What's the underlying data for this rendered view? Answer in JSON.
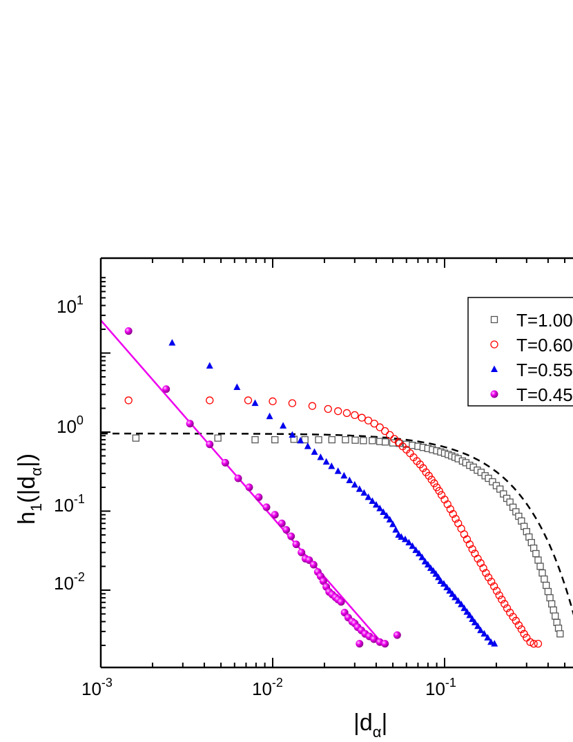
{
  "chart_data": {
    "type": "scatter",
    "x_scale": "log",
    "y_scale": "log",
    "xlim": [
      0.001,
      0.6
    ],
    "ylim": [
      0.002,
      30
    ],
    "x_ticks": [
      {
        "value": 0.001,
        "base": "10",
        "exp": "-3"
      },
      {
        "value": 0.01,
        "base": "10",
        "exp": "-2"
      },
      {
        "value": 0.1,
        "base": "10",
        "exp": "-1"
      }
    ],
    "y_ticks": [
      {
        "value": 0.01,
        "base": "10",
        "exp": "-2"
      },
      {
        "value": 0.1,
        "base": "10",
        "exp": "-1"
      },
      {
        "value": 1,
        "base": "10",
        "exp": "0"
      },
      {
        "value": 10,
        "base": "10",
        "exp": "1"
      }
    ],
    "xlabel": {
      "main": "|d",
      "sub": "α",
      "end": "|"
    },
    "ylabel": {
      "main": "h",
      "sub1": "1",
      "mid": "(|d",
      "sub2": "α",
      "end": "|)"
    },
    "legend_position": "top-right",
    "series": [
      {
        "name": "T=1.00",
        "marker": "open-square",
        "color": "#555555",
        "points": [
          [
            0.0016,
            0.84
          ],
          [
            0.0048,
            0.84
          ],
          [
            0.0079,
            0.8
          ],
          [
            0.0103,
            0.8
          ],
          [
            0.0133,
            0.81
          ],
          [
            0.0154,
            0.8
          ],
          [
            0.0185,
            0.8
          ],
          [
            0.0221,
            0.8
          ],
          [
            0.0265,
            0.8
          ],
          [
            0.0302,
            0.79
          ],
          [
            0.0337,
            0.78
          ],
          [
            0.038,
            0.78
          ],
          [
            0.042,
            0.76
          ],
          [
            0.0452,
            0.75
          ],
          [
            0.05,
            0.73
          ],
          [
            0.0545,
            0.72
          ],
          [
            0.06,
            0.7
          ],
          [
            0.065,
            0.68
          ],
          [
            0.07,
            0.66
          ],
          [
            0.075,
            0.64
          ],
          [
            0.08,
            0.62
          ],
          [
            0.085,
            0.6
          ],
          [
            0.09,
            0.58
          ],
          [
            0.095,
            0.56
          ],
          [
            0.1,
            0.54
          ],
          [
            0.105,
            0.52
          ],
          [
            0.11,
            0.5
          ],
          [
            0.115,
            0.48
          ],
          [
            0.12,
            0.46
          ],
          [
            0.127,
            0.43
          ],
          [
            0.133,
            0.41
          ],
          [
            0.14,
            0.38
          ],
          [
            0.147,
            0.36
          ],
          [
            0.155,
            0.33
          ],
          [
            0.163,
            0.31
          ],
          [
            0.172,
            0.28
          ],
          [
            0.18,
            0.26
          ],
          [
            0.19,
            0.235
          ],
          [
            0.2,
            0.21
          ],
          [
            0.21,
            0.19
          ],
          [
            0.22,
            0.165
          ],
          [
            0.23,
            0.145
          ],
          [
            0.24,
            0.13
          ],
          [
            0.25,
            0.112
          ],
          [
            0.26,
            0.098
          ],
          [
            0.27,
            0.086
          ],
          [
            0.28,
            0.075
          ],
          [
            0.29,
            0.064
          ],
          [
            0.3,
            0.055
          ],
          [
            0.31,
            0.047
          ],
          [
            0.32,
            0.04
          ],
          [
            0.33,
            0.034
          ],
          [
            0.34,
            0.029
          ],
          [
            0.35,
            0.024
          ],
          [
            0.36,
            0.02
          ],
          [
            0.37,
            0.0165
          ],
          [
            0.38,
            0.0138
          ],
          [
            0.39,
            0.0115
          ],
          [
            0.4,
            0.0096
          ],
          [
            0.41,
            0.008
          ],
          [
            0.42,
            0.0067
          ],
          [
            0.43,
            0.0056
          ],
          [
            0.44,
            0.0047
          ],
          [
            0.45,
            0.0039
          ],
          [
            0.46,
            0.0033
          ],
          [
            0.47,
            0.0028
          ]
        ]
      },
      {
        "name": "T=0.60",
        "marker": "open-circle",
        "color": "#ff0000",
        "points": [
          [
            0.00145,
            2.52
          ],
          [
            0.0043,
            2.52
          ],
          [
            0.0072,
            2.52
          ],
          [
            0.01,
            2.45
          ],
          [
            0.013,
            2.32
          ],
          [
            0.017,
            2.14
          ],
          [
            0.021,
            1.96
          ],
          [
            0.024,
            1.84
          ],
          [
            0.027,
            1.74
          ],
          [
            0.03,
            1.64
          ],
          [
            0.033,
            1.52
          ],
          [
            0.036,
            1.4
          ],
          [
            0.039,
            1.28
          ],
          [
            0.042,
            1.15
          ],
          [
            0.045,
            1.03
          ],
          [
            0.048,
            0.92
          ],
          [
            0.051,
            0.82
          ],
          [
            0.054,
            0.74
          ],
          [
            0.057,
            0.66
          ],
          [
            0.06,
            0.6
          ],
          [
            0.063,
            0.54
          ],
          [
            0.066,
            0.48
          ],
          [
            0.069,
            0.43
          ],
          [
            0.072,
            0.39
          ],
          [
            0.075,
            0.35
          ],
          [
            0.078,
            0.31
          ],
          [
            0.081,
            0.28
          ],
          [
            0.084,
            0.25
          ],
          [
            0.087,
            0.225
          ],
          [
            0.09,
            0.2
          ],
          [
            0.093,
            0.18
          ],
          [
            0.096,
            0.16
          ],
          [
            0.1,
            0.14
          ],
          [
            0.104,
            0.122
          ],
          [
            0.108,
            0.106
          ],
          [
            0.112,
            0.092
          ],
          [
            0.116,
            0.08
          ],
          [
            0.12,
            0.07
          ],
          [
            0.125,
            0.06
          ],
          [
            0.13,
            0.051
          ],
          [
            0.135,
            0.044
          ],
          [
            0.14,
            0.038
          ],
          [
            0.145,
            0.033
          ],
          [
            0.15,
            0.029
          ],
          [
            0.156,
            0.025
          ],
          [
            0.162,
            0.022
          ],
          [
            0.168,
            0.019
          ],
          [
            0.174,
            0.0165
          ],
          [
            0.18,
            0.0145
          ],
          [
            0.187,
            0.0128
          ],
          [
            0.194,
            0.0112
          ],
          [
            0.201,
            0.0098
          ],
          [
            0.208,
            0.0086
          ],
          [
            0.215,
            0.0076
          ],
          [
            0.223,
            0.0067
          ],
          [
            0.231,
            0.0059
          ],
          [
            0.24,
            0.0052
          ],
          [
            0.25,
            0.0046
          ],
          [
            0.26,
            0.0041
          ],
          [
            0.27,
            0.0036
          ],
          [
            0.28,
            0.0032
          ],
          [
            0.29,
            0.0028
          ],
          [
            0.3,
            0.0025
          ],
          [
            0.315,
            0.0022
          ],
          [
            0.33,
            0.0021
          ],
          [
            0.35,
            0.0021
          ]
        ]
      },
      {
        "name": "T=0.55",
        "marker": "filled-triangle",
        "color": "#0000ee",
        "points": [
          [
            0.0026,
            13.5
          ],
          [
            0.0043,
            6.9
          ],
          [
            0.0062,
            3.7
          ],
          [
            0.0079,
            2.32
          ],
          [
            0.0096,
            1.58
          ],
          [
            0.0115,
            1.2
          ],
          [
            0.013,
            0.92
          ],
          [
            0.0145,
            0.78
          ],
          [
            0.016,
            0.66
          ],
          [
            0.0175,
            0.56
          ],
          [
            0.019,
            0.48
          ],
          [
            0.0205,
            0.42
          ],
          [
            0.022,
            0.37
          ],
          [
            0.024,
            0.32
          ],
          [
            0.026,
            0.28
          ],
          [
            0.028,
            0.245
          ],
          [
            0.03,
            0.215
          ],
          [
            0.032,
            0.19
          ],
          [
            0.034,
            0.17
          ],
          [
            0.036,
            0.15
          ],
          [
            0.038,
            0.134
          ],
          [
            0.04,
            0.12
          ],
          [
            0.042,
            0.108
          ],
          [
            0.044,
            0.097
          ],
          [
            0.046,
            0.087
          ],
          [
            0.048,
            0.078
          ],
          [
            0.05,
            0.068
          ],
          [
            0.052,
            0.058
          ],
          [
            0.054,
            0.05
          ],
          [
            0.056,
            0.047
          ],
          [
            0.059,
            0.044
          ],
          [
            0.062,
            0.04
          ],
          [
            0.065,
            0.036
          ],
          [
            0.068,
            0.032
          ],
          [
            0.071,
            0.029
          ],
          [
            0.074,
            0.026
          ],
          [
            0.077,
            0.023
          ],
          [
            0.08,
            0.021
          ],
          [
            0.083,
            0.019
          ],
          [
            0.086,
            0.0175
          ],
          [
            0.089,
            0.016
          ],
          [
            0.092,
            0.0145
          ],
          [
            0.095,
            0.013
          ],
          [
            0.099,
            0.012
          ],
          [
            0.103,
            0.0108
          ],
          [
            0.107,
            0.0098
          ],
          [
            0.111,
            0.0089
          ],
          [
            0.115,
            0.0081
          ],
          [
            0.12,
            0.0073
          ],
          [
            0.125,
            0.0066
          ],
          [
            0.13,
            0.0059
          ],
          [
            0.135,
            0.0053
          ],
          [
            0.14,
            0.0048
          ],
          [
            0.145,
            0.0043
          ],
          [
            0.15,
            0.0039
          ],
          [
            0.156,
            0.0035
          ],
          [
            0.162,
            0.0031
          ],
          [
            0.17,
            0.0028
          ],
          [
            0.178,
            0.0025
          ],
          [
            0.186,
            0.0022
          ],
          [
            0.195,
            0.0021
          ]
        ]
      },
      {
        "name": "T=0.45",
        "marker": "filled-sphere",
        "color": "#ee00ee",
        "points": [
          [
            0.00145,
            19.0
          ],
          [
            0.0024,
            3.5
          ],
          [
            0.0033,
            1.28
          ],
          [
            0.0043,
            0.7
          ],
          [
            0.0053,
            0.41
          ],
          [
            0.0063,
            0.26
          ],
          [
            0.0073,
            0.2
          ],
          [
            0.0083,
            0.15
          ],
          [
            0.0092,
            0.112
          ],
          [
            0.0103,
            0.09
          ],
          [
            0.0113,
            0.07
          ],
          [
            0.012,
            0.058
          ],
          [
            0.0128,
            0.048
          ],
          [
            0.0137,
            0.038
          ],
          [
            0.0147,
            0.03
          ],
          [
            0.0155,
            0.025
          ],
          [
            0.0163,
            0.024
          ],
          [
            0.0173,
            0.021
          ],
          [
            0.0183,
            0.017
          ],
          [
            0.019,
            0.015
          ],
          [
            0.0197,
            0.013
          ],
          [
            0.0205,
            0.011
          ],
          [
            0.0213,
            0.0095
          ],
          [
            0.0222,
            0.0088
          ],
          [
            0.0232,
            0.0081
          ],
          [
            0.024,
            0.0076
          ],
          [
            0.025,
            0.0071
          ],
          [
            0.0262,
            0.0052
          ],
          [
            0.0275,
            0.0045
          ],
          [
            0.029,
            0.004
          ],
          [
            0.03,
            0.0038
          ],
          [
            0.0312,
            0.0034
          ],
          [
            0.0328,
            0.0031
          ],
          [
            0.0345,
            0.0028
          ],
          [
            0.0365,
            0.0026
          ],
          [
            0.0388,
            0.0024
          ],
          [
            0.042,
            0.0022
          ],
          [
            0.053,
            0.0027
          ],
          [
            0.032,
            0.0021
          ],
          [
            0.045,
            0.0021
          ]
        ]
      }
    ],
    "fits": [
      {
        "for": "T=1.00",
        "style": "dashed",
        "color": "#000000",
        "form": "stretched-exp",
        "a": 0.96,
        "x0": 0.186,
        "beta": 1.5
      },
      {
        "for": "T=0.45",
        "style": "solid",
        "color": "#ee00ee",
        "form": "power-law",
        "x_from": 0.001,
        "x_to": 0.0445,
        "y_at_from": 26.0,
        "y_at_to": 0.002
      }
    ]
  }
}
